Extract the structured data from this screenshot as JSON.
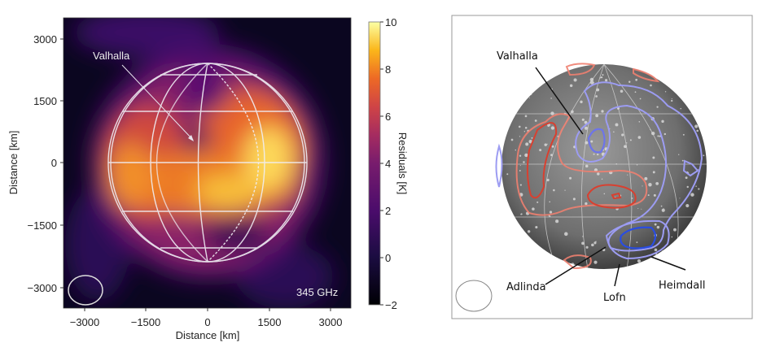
{
  "chart_data": [
    {
      "type": "heatmap",
      "xlabel": "Distance [km]",
      "ylabel": "Distance [km]",
      "xlim": [
        -3500,
        3500
      ],
      "ylim": [
        -3500,
        3500
      ],
      "xticks": [
        "−3000",
        "−1500",
        "0",
        "1500",
        "3000"
      ],
      "yticks": [
        "3000",
        "1500",
        "0",
        "−1500",
        "−3000"
      ],
      "colorbar": {
        "label": "Residuals [K]",
        "range": [
          -2,
          10
        ],
        "ticks": [
          "10",
          "8",
          "6",
          "4",
          "2",
          "0",
          "−2"
        ],
        "colormap": "inferno"
      },
      "annotations": {
        "feature": "Valhalla",
        "frequency": "345 GHz"
      },
      "globe_radius_km": 2410
    },
    {
      "type": "image-with-contours",
      "labels": [
        "Valhalla",
        "Adlinda",
        "Lofn",
        "Heimdall"
      ],
      "contour_colors": {
        "warm": "#e8604a",
        "cold": "#8888ee",
        "cold_strong": "#2244dd"
      }
    }
  ]
}
